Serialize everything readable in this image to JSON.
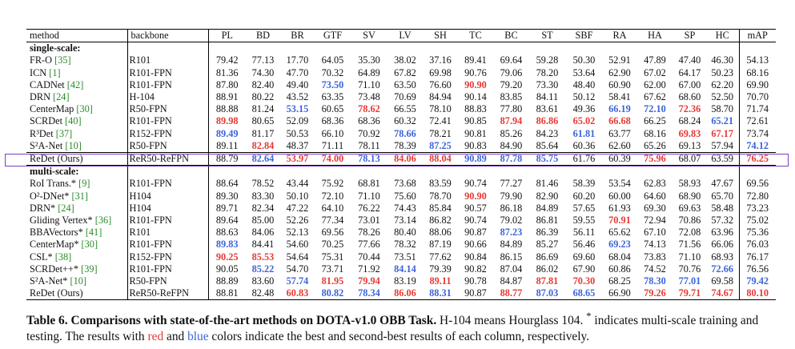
{
  "table": {
    "headers": [
      "method",
      "backbone",
      "PL",
      "BD",
      "BR",
      "GTF",
      "SV",
      "LV",
      "SH",
      "TC",
      "BC",
      "ST",
      "SBF",
      "RA",
      "HA",
      "SP",
      "HC",
      "mAP"
    ],
    "sections": [
      {
        "title": "single-scale:",
        "rows": [
          {
            "method": "FR-O",
            "cite": "[35]",
            "backbone": "R101",
            "values": [
              "79.42",
              "77.13",
              "17.70",
              "64.05",
              "35.30",
              "38.02",
              "37.16",
              "89.41",
              "69.64",
              "59.28",
              "50.30",
              "52.91",
              "47.89",
              "47.40",
              "46.30",
              "54.13"
            ],
            "colors": [
              "",
              "",
              "",
              "",
              "",
              "",
              "",
              "",
              "",
              "",
              "",
              "",
              "",
              "",
              "",
              ""
            ]
          },
          {
            "method": "ICN",
            "cite": "[1]",
            "backbone": "R101-FPN",
            "values": [
              "81.36",
              "74.30",
              "47.70",
              "70.32",
              "64.89",
              "67.82",
              "69.98",
              "90.76",
              "79.06",
              "78.20",
              "53.64",
              "62.90",
              "67.02",
              "64.17",
              "50.23",
              "68.16"
            ],
            "colors": [
              "",
              "",
              "",
              "",
              "",
              "",
              "",
              "",
              "",
              "",
              "",
              "",
              "",
              "",
              "",
              ""
            ]
          },
          {
            "method": "CADNet",
            "cite": "[42]",
            "backbone": "R101-FPN",
            "values": [
              "87.80",
              "82.40",
              "49.40",
              "73.50",
              "71.10",
              "63.50",
              "76.60",
              "90.90",
              "79.20",
              "73.30",
              "48.40",
              "60.90",
              "62.00",
              "67.00",
              "62.20",
              "69.90"
            ],
            "colors": [
              "",
              "",
              "",
              "b",
              "",
              "",
              "",
              "r",
              "",
              "",
              "",
              "",
              "",
              "",
              "",
              ""
            ]
          },
          {
            "method": "DRN",
            "cite": "[24]",
            "backbone": "H-104",
            "values": [
              "88.91",
              "80.22",
              "43.52",
              "63.35",
              "73.48",
              "70.69",
              "84.94",
              "90.14",
              "83.85",
              "84.11",
              "50.12",
              "58.41",
              "67.62",
              "68.60",
              "52.50",
              "70.70"
            ],
            "colors": [
              "",
              "",
              "",
              "",
              "",
              "",
              "",
              "",
              "",
              "",
              "",
              "",
              "",
              "",
              "",
              ""
            ]
          },
          {
            "method": "CenterMap",
            "cite": "[30]",
            "backbone": "R50-FPN",
            "values": [
              "88.88",
              "81.24",
              "53.15",
              "60.65",
              "78.62",
              "66.55",
              "78.10",
              "88.83",
              "77.80",
              "83.61",
              "49.36",
              "66.19",
              "72.10",
              "72.36",
              "58.70",
              "71.74"
            ],
            "colors": [
              "",
              "",
              "b",
              "",
              "r",
              "",
              "",
              "",
              "",
              "",
              "",
              "b",
              "b",
              "r",
              "",
              ""
            ]
          },
          {
            "method": "SCRDet",
            "cite": "[40]",
            "backbone": "R101-FPN",
            "values": [
              "89.98",
              "80.65",
              "52.09",
              "68.36",
              "68.36",
              "60.32",
              "72.41",
              "90.85",
              "87.94",
              "86.86",
              "65.02",
              "66.68",
              "66.25",
              "68.24",
              "65.21",
              "72.61"
            ],
            "colors": [
              "r",
              "",
              "",
              "",
              "",
              "",
              "",
              "",
              "r",
              "r",
              "r",
              "r",
              "",
              "",
              "b",
              ""
            ]
          },
          {
            "method": "R³Det",
            "cite": "[37]",
            "backbone": "R152-FPN",
            "values": [
              "89.49",
              "81.17",
              "50.53",
              "66.10",
              "70.92",
              "78.66",
              "78.21",
              "90.81",
              "85.26",
              "84.23",
              "61.81",
              "63.77",
              "68.16",
              "69.83",
              "67.17",
              "73.74"
            ],
            "colors": [
              "b",
              "",
              "",
              "",
              "",
              "b",
              "",
              "",
              "",
              "",
              "b",
              "",
              "",
              "r",
              "r",
              ""
            ]
          },
          {
            "method": "S²A-Net",
            "cite": "[10]",
            "backbone": "R50-FPN",
            "values": [
              "89.11",
              "82.84",
              "48.37",
              "71.11",
              "78.11",
              "78.39",
              "87.25",
              "90.83",
              "84.90",
              "85.64",
              "60.36",
              "62.60",
              "65.26",
              "69.13",
              "57.94",
              "74.12"
            ],
            "colors": [
              "",
              "r",
              "",
              "",
              "",
              "",
              "b",
              "",
              "",
              "",
              "",
              "",
              "",
              "",
              "",
              "b"
            ]
          },
          {
            "method": "ReDet (Ours)",
            "cite": "",
            "backbone": "ReR50-ReFPN",
            "ours": true,
            "values": [
              "88.79",
              "82.64",
              "53.97",
              "74.00",
              "78.13",
              "84.06",
              "88.04",
              "90.89",
              "87.78",
              "85.75",
              "61.76",
              "60.39",
              "75.96",
              "68.07",
              "63.59",
              "76.25"
            ],
            "colors": [
              "",
              "b",
              "r",
              "r",
              "b",
              "r",
              "r",
              "b",
              "b",
              "b",
              "",
              "",
              "r",
              "",
              "",
              "r"
            ]
          }
        ]
      },
      {
        "title": "multi-scale:",
        "rows": [
          {
            "method": "RoI Trans.*",
            "cite": "[9]",
            "backbone": "R101-FPN",
            "values": [
              "88.64",
              "78.52",
              "43.44",
              "75.92",
              "68.81",
              "73.68",
              "83.59",
              "90.74",
              "77.27",
              "81.46",
              "58.39",
              "53.54",
              "62.83",
              "58.93",
              "47.67",
              "69.56"
            ],
            "colors": [
              "",
              "",
              "",
              "",
              "",
              "",
              "",
              "",
              "",
              "",
              "",
              "",
              "",
              "",
              "",
              ""
            ]
          },
          {
            "method": "O²-DNet*",
            "cite": "[31]",
            "backbone": "H104",
            "values": [
              "89.30",
              "83.30",
              "50.10",
              "72.10",
              "71.10",
              "75.60",
              "78.70",
              "90.90",
              "79.90",
              "82.90",
              "60.20",
              "60.00",
              "64.60",
              "68.90",
              "65.70",
              "72.80"
            ],
            "colors": [
              "",
              "",
              "",
              "",
              "",
              "",
              "",
              "r",
              "",
              "",
              "",
              "",
              "",
              "",
              "",
              ""
            ]
          },
          {
            "method": "DRN*",
            "cite": "[24]",
            "backbone": "H104",
            "values": [
              "89.71",
              "82.34",
              "47.22",
              "64.10",
              "76.22",
              "74.43",
              "85.84",
              "90.57",
              "86.18",
              "84.89",
              "57.65",
              "61.93",
              "69.30",
              "69.63",
              "58.48",
              "73.23"
            ],
            "colors": [
              "",
              "",
              "",
              "",
              "",
              "",
              "",
              "",
              "",
              "",
              "",
              "",
              "",
              "",
              "",
              ""
            ]
          },
          {
            "method": "Gliding Vertex*",
            "cite": "[36]",
            "backbone": "R101-FPN",
            "values": [
              "89.64",
              "85.00",
              "52.26",
              "77.34",
              "73.01",
              "73.14",
              "86.82",
              "90.74",
              "79.02",
              "86.81",
              "59.55",
              "70.91",
              "72.94",
              "70.86",
              "57.32",
              "75.02"
            ],
            "colors": [
              "",
              "",
              "",
              "",
              "",
              "",
              "",
              "",
              "",
              "",
              "",
              "r",
              "",
              "",
              "",
              ""
            ]
          },
          {
            "method": "BBAVectors*",
            "cite": "[41]",
            "backbone": "R101",
            "values": [
              "88.63",
              "84.06",
              "52.13",
              "69.56",
              "78.26",
              "80.40",
              "88.06",
              "90.87",
              "87.23",
              "86.39",
              "56.11",
              "65.62",
              "67.10",
              "72.08",
              "63.96",
              "75.36"
            ],
            "colors": [
              "",
              "",
              "",
              "",
              "",
              "",
              "",
              "",
              "b",
              "",
              "",
              "",
              "",
              "",
              "",
              ""
            ]
          },
          {
            "method": "CenterMap*",
            "cite": "[30]",
            "backbone": "R101-FPN",
            "values": [
              "89.83",
              "84.41",
              "54.60",
              "70.25",
              "77.66",
              "78.32",
              "87.19",
              "90.66",
              "84.89",
              "85.27",
              "56.46",
              "69.23",
              "74.13",
              "71.56",
              "66.06",
              "76.03"
            ],
            "colors": [
              "b",
              "",
              "",
              "",
              "",
              "",
              "",
              "",
              "",
              "",
              "",
              "b",
              "",
              "",
              "",
              ""
            ]
          },
          {
            "method": "CSL*",
            "cite": "[38]",
            "backbone": "R152-FPN",
            "values": [
              "90.25",
              "85.53",
              "54.64",
              "75.31",
              "70.44",
              "73.51",
              "77.62",
              "90.84",
              "86.15",
              "86.69",
              "69.60",
              "68.04",
              "73.83",
              "71.10",
              "68.93",
              "76.17"
            ],
            "colors": [
              "r",
              "r",
              "",
              "",
              "",
              "",
              "",
              "",
              "",
              "",
              "",
              "",
              "",
              "",
              "",
              ""
            ]
          },
          {
            "method": "SCRDet++*",
            "cite": "[39]",
            "backbone": "R101-FPN",
            "values": [
              "90.05",
              "85.22",
              "54.70",
              "73.71",
              "71.92",
              "84.14",
              "79.39",
              "90.82",
              "87.04",
              "86.02",
              "67.90",
              "60.86",
              "74.52",
              "70.76",
              "72.66",
              "76.56"
            ],
            "colors": [
              "",
              "b",
              "",
              "",
              "",
              "b",
              "",
              "",
              "",
              "",
              "",
              "",
              "",
              "",
              "b",
              ""
            ]
          },
          {
            "method": "S²A-Net*",
            "cite": "[10]",
            "backbone": "R50-FPN",
            "values": [
              "88.89",
              "83.60",
              "57.74",
              "81.95",
              "79.94",
              "83.19",
              "89.11",
              "90.78",
              "84.87",
              "87.81",
              "70.30",
              "68.25",
              "78.30",
              "77.01",
              "69.58",
              "79.42"
            ],
            "colors": [
              "",
              "",
              "b",
              "r",
              "r",
              "",
              "r",
              "",
              "",
              "r",
              "r",
              "",
              "b",
              "b",
              "",
              "b"
            ]
          },
          {
            "method": "ReDet (Ours)",
            "cite": "",
            "backbone": "ReR50-ReFPN",
            "values": [
              "88.81",
              "82.48",
              "60.83",
              "80.82",
              "78.34",
              "86.06",
              "88.31",
              "90.87",
              "88.77",
              "87.03",
              "68.65",
              "66.90",
              "79.26",
              "79.71",
              "74.67",
              "80.10"
            ],
            "colors": [
              "",
              "",
              "r",
              "b",
              "b",
              "r",
              "b",
              "",
              "r",
              "b",
              "b",
              "",
              "r",
              "r",
              "r",
              "r"
            ]
          }
        ]
      }
    ]
  },
  "caption": {
    "label": "Table 6. Comparisons with state-of-the-art methods on DOTA-v1.0 OBB Task.",
    "text1": " H-104 means Hourglass 104. ",
    "star": "*",
    "text2": " indicates multi-scale training and testing. The results with ",
    "red_word": "red",
    "text3": " and ",
    "blue_word": "blue",
    "text4": " colors indicate the best and second-best results of each column, respectively."
  },
  "colors": {
    "best": "#e53935",
    "second": "#3c64d8",
    "cite": "#2a8a2a",
    "highlight": "#7d3fc4"
  }
}
